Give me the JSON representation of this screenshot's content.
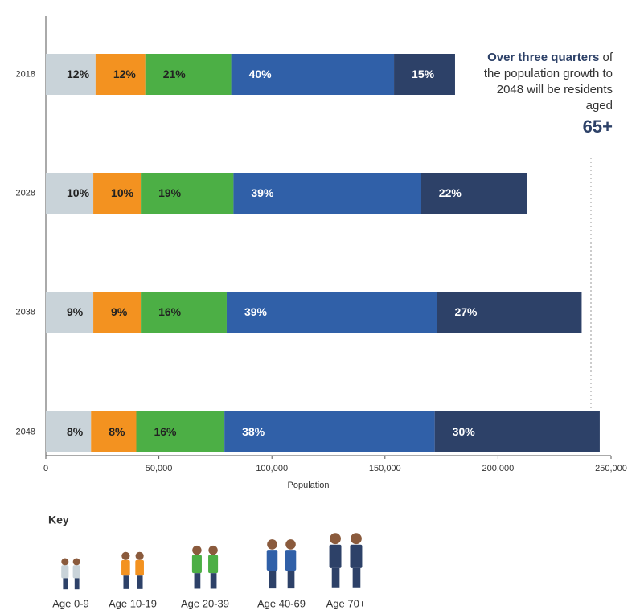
{
  "chart_data": {
    "type": "stacked-bar-horizontal",
    "categories": [
      "2018",
      "2028",
      "2038",
      "2048"
    ],
    "series": [
      {
        "name": "Age 0-9",
        "color": "#c9d3d9",
        "values": [
          22000,
          21000,
          21000,
          20000
        ],
        "value_labels": [
          "12%",
          "10%",
          "9%",
          "8%"
        ]
      },
      {
        "name": "Age 10-19",
        "color": "#f39220",
        "values": [
          22000,
          21000,
          21000,
          20000
        ],
        "value_labels": [
          "12%",
          "10%",
          "9%",
          "8%"
        ]
      },
      {
        "name": "Age 20-39",
        "color": "#4caf45",
        "values": [
          38000,
          41000,
          38000,
          39000
        ],
        "value_labels": [
          "21%",
          "19%",
          "16%",
          "16%"
        ]
      },
      {
        "name": "Age 40-69",
        "color": "#3060a8",
        "values": [
          72000,
          83000,
          93000,
          93000
        ],
        "value_labels": [
          "40%",
          "39%",
          "39%",
          "38%"
        ]
      },
      {
        "name": "Age 70+",
        "color": "#2d4168",
        "values": [
          27000,
          47000,
          64000,
          73000
        ],
        "value_labels": [
          "15%",
          "22%",
          "27%",
          "30%"
        ]
      }
    ],
    "xlabel": "Population",
    "xlim": [
      0,
      250000
    ],
    "xticks": [
      0,
      {
        "value": 50000,
        "label": "50,000"
      },
      {
        "value": 100000,
        "label": "100,000"
      },
      {
        "value": 150000,
        "label": "150,000"
      },
      {
        "value": 200000,
        "label": "200,000"
      },
      {
        "value": 250000,
        "label": "250,000"
      }
    ],
    "legend_title": "Key",
    "annotation": {
      "bold": "Over three quarters",
      "text": "of the population growth to 2048 will be residents aged",
      "value": "65+"
    }
  }
}
